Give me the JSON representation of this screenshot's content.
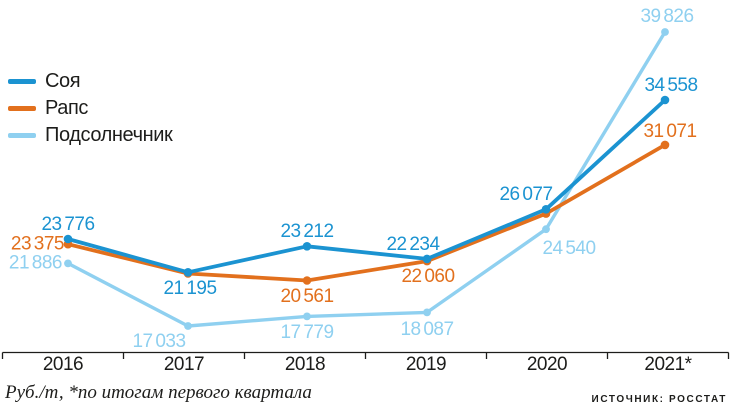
{
  "chart_data": {
    "type": "line",
    "title": "",
    "x_labels": [
      "2016",
      "2017",
      "2018",
      "2019",
      "2020",
      "2021*"
    ],
    "series": [
      {
        "name": "Соя",
        "color": "#1B93D1",
        "values": [
          23776,
          21195,
          23212,
          22234,
          26077,
          34558
        ],
        "point_labels": [
          "23 776",
          "21 195",
          "23 212",
          "22 234",
          "26 077",
          "34 558"
        ]
      },
      {
        "name": "Рапс",
        "color": "#E2701D",
        "values": [
          23375,
          21100,
          20561,
          22060,
          25750,
          31071
        ],
        "point_labels": [
          "23 375",
          null,
          "20 561",
          "22 060",
          null,
          "31 071"
        ]
      },
      {
        "name": "Подсолнечник",
        "color": "#8FD0F0",
        "values": [
          21886,
          17033,
          17779,
          18087,
          24540,
          39826
        ],
        "point_labels": [
          "21 886",
          "17 033",
          "17 779",
          "18 087",
          "24 540",
          "39 826"
        ]
      }
    ],
    "legend_position": "top-left",
    "grid": false,
    "y_axis_visible": false,
    "approx_y_range": [
      15000,
      41000
    ]
  },
  "footer": {
    "note": "Руб./т, *по итогам первого квартала",
    "source": "ИСТОЧНИК: РОССТАТ"
  },
  "colors": {
    "axis": "#1d1d1b",
    "background": "#FFFFFF"
  }
}
